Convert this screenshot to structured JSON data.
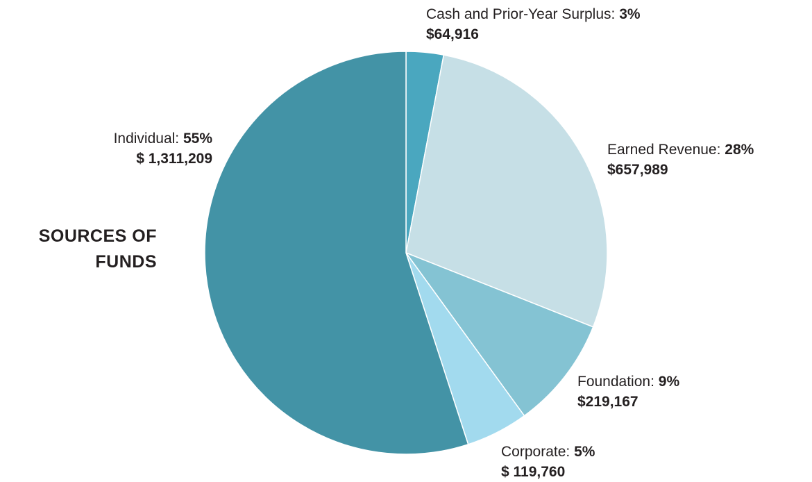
{
  "chart_data": {
    "type": "pie",
    "title": "SOURCES OF FUNDS",
    "categories": [
      "Cash and Prior-Year Surplus",
      "Earned Revenue",
      "Foundation",
      "Corporate",
      "Individual"
    ],
    "values": [
      3,
      28,
      9,
      5,
      55
    ],
    "value_labels": [
      "3%",
      "28%",
      "9%",
      "5%",
      "55%"
    ],
    "amount_labels": [
      "$64,916",
      "$657,989",
      "$219,167",
      "$ 119,760",
      "$ 1,311,209"
    ],
    "colors": [
      "#4aa7bf",
      "#c6dfe6",
      "#84c3d3",
      "#a2daee",
      "#4393a6"
    ]
  }
}
